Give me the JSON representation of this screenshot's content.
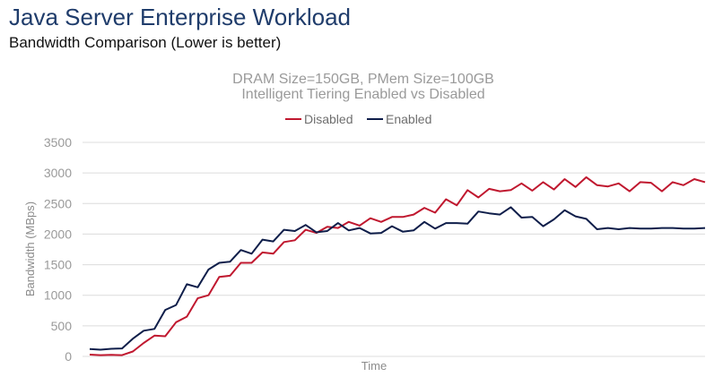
{
  "header": {
    "title": "Java Server Enterprise Workload",
    "subtitle": "Bandwidth Comparison (Lower is better)"
  },
  "chart_data": {
    "type": "line",
    "title": "DRAM Size=150GB, PMem Size=100GB",
    "subtitle": "Intelligent Tiering Enabled vs Disabled",
    "xlabel": "Time",
    "ylabel": "Bandwidth (MBps)",
    "ylim": [
      0,
      3500
    ],
    "yticks": [
      0,
      500,
      1000,
      1500,
      2000,
      2500,
      3000,
      3500
    ],
    "grid": true,
    "legend": "top-center",
    "x": [
      1,
      2,
      3,
      4,
      5,
      6,
      7,
      8,
      9,
      10,
      11,
      12,
      13,
      14,
      15,
      16,
      17,
      18,
      19,
      20,
      21,
      22,
      23,
      24,
      25,
      26,
      27,
      28,
      29,
      30,
      31,
      32,
      33,
      34,
      35,
      36,
      37,
      38,
      39,
      40,
      41,
      42,
      43,
      44,
      45,
      46,
      47,
      48,
      49,
      50,
      51,
      52,
      53,
      54,
      55,
      56,
      57,
      58
    ],
    "series": [
      {
        "name": "Disabled",
        "color": "#c0182f",
        "values": [
          30,
          20,
          25,
          20,
          80,
          220,
          340,
          330,
          560,
          650,
          950,
          1000,
          1300,
          1320,
          1530,
          1530,
          1700,
          1680,
          1870,
          1900,
          2070,
          2020,
          2120,
          2100,
          2200,
          2140,
          2260,
          2200,
          2280,
          2280,
          2320,
          2430,
          2350,
          2570,
          2470,
          2720,
          2600,
          2740,
          2700,
          2720,
          2830,
          2710,
          2850,
          2730,
          2900,
          2770,
          2930,
          2800,
          2780,
          2830,
          2700,
          2850,
          2840,
          2700,
          2850,
          2800,
          2900,
          2850
        ]
      },
      {
        "name": "Enabled",
        "color": "#0f1e4a",
        "values": [
          120,
          110,
          125,
          130,
          290,
          420,
          450,
          760,
          840,
          1180,
          1130,
          1420,
          1530,
          1550,
          1740,
          1680,
          1910,
          1880,
          2070,
          2050,
          2150,
          2030,
          2050,
          2180,
          2060,
          2100,
          2010,
          2020,
          2130,
          2040,
          2060,
          2200,
          2090,
          2180,
          2180,
          2170,
          2370,
          2340,
          2320,
          2440,
          2270,
          2280,
          2130,
          2240,
          2390,
          2290,
          2250,
          2080,
          2100,
          2080,
          2100,
          2090,
          2090,
          2100,
          2100,
          2090,
          2090,
          2100
        ]
      }
    ]
  }
}
